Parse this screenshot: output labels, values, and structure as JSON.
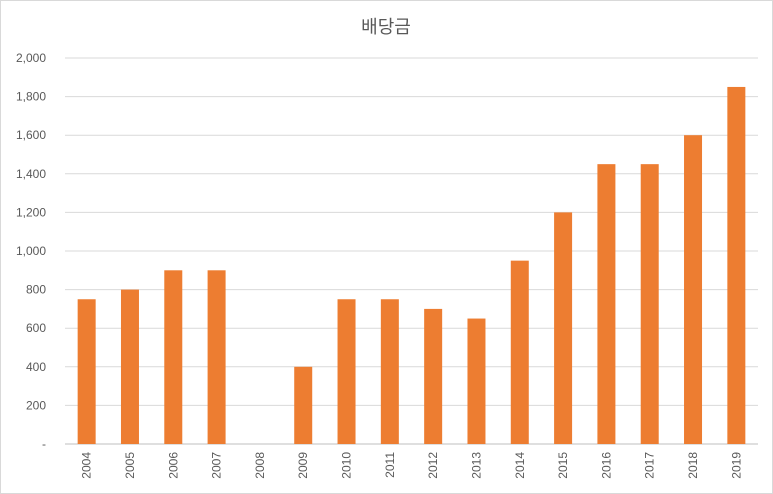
{
  "chart_data": {
    "type": "bar",
    "title": "배당금",
    "xlabel": "",
    "ylabel": "",
    "categories": [
      "2004",
      "2005",
      "2006",
      "2007",
      "2008",
      "2009",
      "2010",
      "2011",
      "2012",
      "2013",
      "2014",
      "2015",
      "2016",
      "2017",
      "2018",
      "2019"
    ],
    "values": [
      750,
      800,
      900,
      900,
      0,
      400,
      750,
      750,
      700,
      650,
      950,
      1200,
      1450,
      1450,
      1600,
      1850
    ],
    "ylim": [
      0,
      2000
    ],
    "yticks": [
      0,
      200,
      400,
      600,
      800,
      1000,
      1200,
      1400,
      1600,
      1800,
      2000
    ],
    "ytick_labels": [
      "-",
      "200",
      "400",
      "600",
      "800",
      "1,000",
      "1,200",
      "1,400",
      "1,600",
      "1,800",
      "2,000"
    ],
    "grid": true,
    "legend": "none",
    "bar_color": "#ED7D31"
  }
}
